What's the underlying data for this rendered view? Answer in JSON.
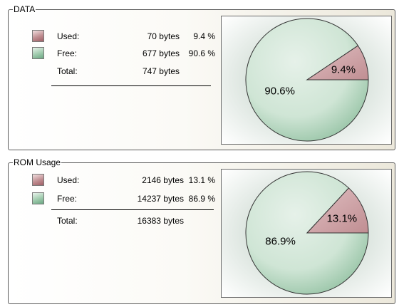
{
  "data_panel": {
    "title": "DATA",
    "used": {
      "label": "Used:",
      "bytes": "70 bytes",
      "percent": "9.4 %"
    },
    "free": {
      "label": "Free:",
      "bytes": "677 bytes",
      "percent": "90.6 %"
    },
    "total": {
      "label": "Total:",
      "bytes": "747 bytes"
    },
    "pie_used_label": "9.4%",
    "pie_free_label": "90.6%"
  },
  "rom_panel": {
    "title": "ROM Usage",
    "used": {
      "label": "Used:",
      "bytes": "2146 bytes",
      "percent": "13.1 %"
    },
    "free": {
      "label": "Free:",
      "bytes": "14237 bytes",
      "percent": "86.9 %"
    },
    "total": {
      "label": "Total:",
      "bytes": "16383 bytes"
    },
    "pie_used_label": "13.1%",
    "pie_free_label": "86.9%"
  },
  "chart_data": [
    {
      "type": "pie",
      "categories": [
        "Used",
        "Free"
      ],
      "values": [
        9.4,
        90.6
      ],
      "colors": {
        "used": "#c08e92",
        "free": "#cfe5d5"
      }
    },
    {
      "type": "pie",
      "categories": [
        "Used",
        "Free"
      ],
      "values": [
        13.1,
        86.9
      ],
      "colors": {
        "used": "#c08e92",
        "free": "#cfe5d5"
      }
    }
  ]
}
